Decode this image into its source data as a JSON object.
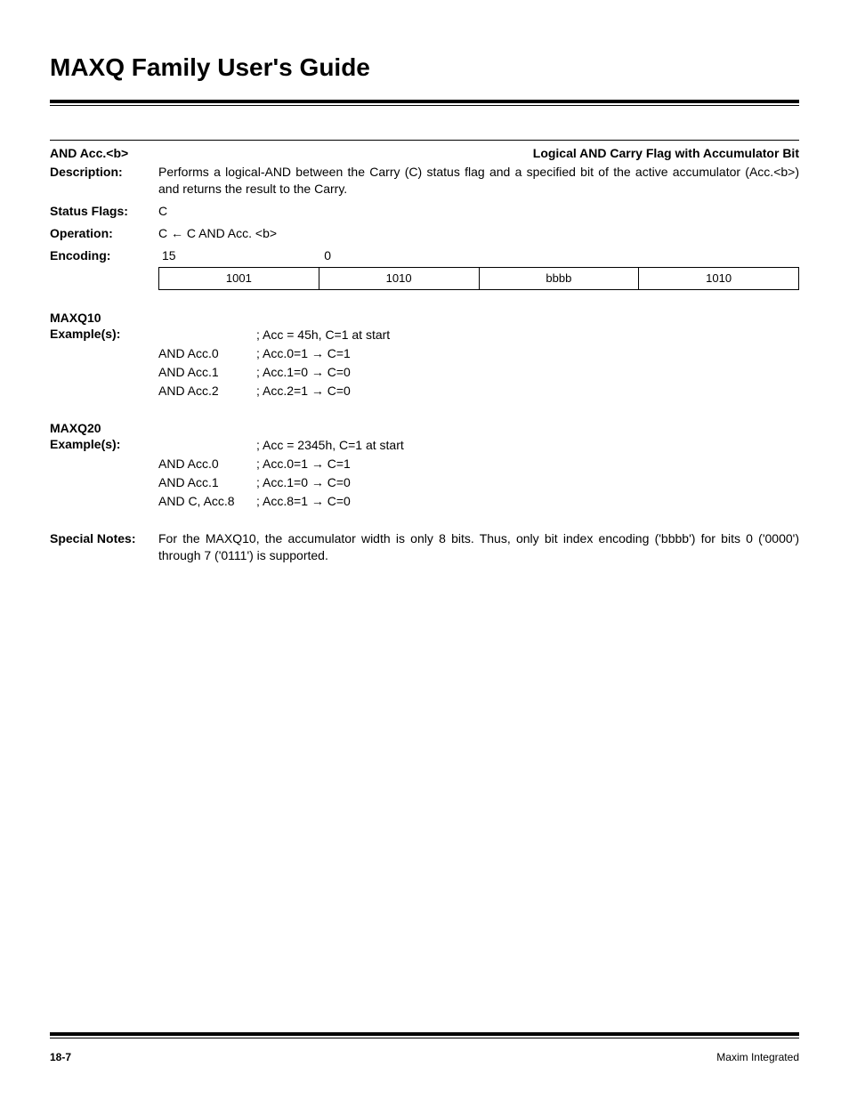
{
  "page_title": "MAXQ Family User's Guide",
  "instruction": {
    "name": "AND Acc.<b>",
    "title": "Logical AND Carry Flag with Accumulator Bit"
  },
  "description": {
    "label": "Description:",
    "text": "Performs a logical-AND between the Carry (C) status flag and a specified bit of the active accumulator (Acc.<b>) and returns the result to the Carry."
  },
  "status_flags": {
    "label": "Status Flags:",
    "value": "C"
  },
  "operation": {
    "label": "Operation:",
    "value": "C ← C AND Acc. <b>"
  },
  "encoding": {
    "label": "Encoding:",
    "high": "15",
    "low": "0",
    "cells": [
      "1001",
      "1010",
      "bbbb",
      "1010"
    ]
  },
  "examples": [
    {
      "heading1": "MAXQ10",
      "heading2": "Example(s):",
      "start": "; Acc = 45h, C=1 at start",
      "lines": [
        {
          "instr": "AND  Acc.0",
          "comment": "; Acc.0=1   → C=1"
        },
        {
          "instr": "AND  Acc.1",
          "comment": "; Acc.1=0   → C=0"
        },
        {
          "instr": "AND  Acc.2",
          "comment": "; Acc.2=1   → C=0"
        }
      ]
    },
    {
      "heading1": "MAXQ20",
      "heading2": "Example(s):",
      "start": "; Acc = 2345h, C=1 at start",
      "lines": [
        {
          "instr": "AND Acc.0",
          "comment": "; Acc.0=1   → C=1"
        },
        {
          "instr": "AND Acc.1",
          "comment": "; Acc.1=0   → C=0"
        },
        {
          "instr": "AND C, Acc.8",
          "comment": "; Acc.8=1   → C=0"
        }
      ]
    }
  ],
  "special_notes": {
    "label": "Special Notes:",
    "text": "For the MAXQ10, the accumulator width is only 8 bits. Thus, only bit index encoding ('bbbb') for bits 0 ('0000') through 7 ('0111') is supported."
  },
  "footer": {
    "page": "18-7",
    "company": "Maxim Integrated"
  }
}
